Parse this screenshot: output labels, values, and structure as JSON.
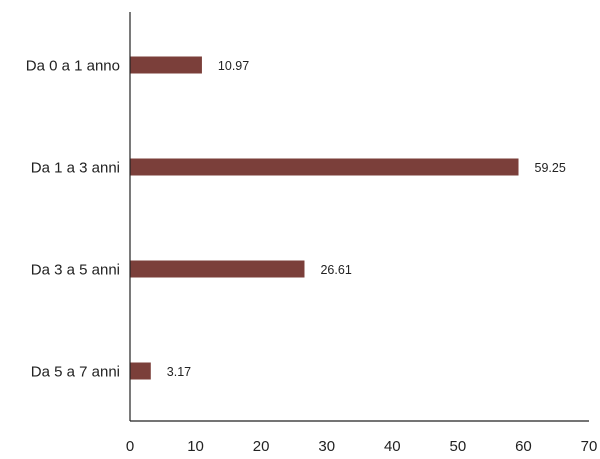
{
  "chart_data": {
    "type": "bar",
    "orientation": "horizontal",
    "title": "",
    "xlabel": "",
    "ylabel": "",
    "categories": [
      "Da 0 a 1 anno",
      "Da 1 a 3 anni",
      "Da 3 a 5 anni",
      "Da 5 a 7 anni"
    ],
    "values": [
      10.97,
      59.25,
      26.61,
      3.17
    ],
    "value_labels": [
      "10.97",
      "59.25",
      "26.61",
      "3.17"
    ],
    "xlim": [
      0,
      70
    ],
    "xticks": [
      0,
      10,
      20,
      30,
      40,
      50,
      60,
      70
    ],
    "xtick_labels": [
      "0",
      "10",
      "20",
      "30",
      "40",
      "50",
      "60",
      "70"
    ],
    "grid": false,
    "legend": "none",
    "bar_color": "#7b3f3a",
    "axis_color": "#222222"
  }
}
